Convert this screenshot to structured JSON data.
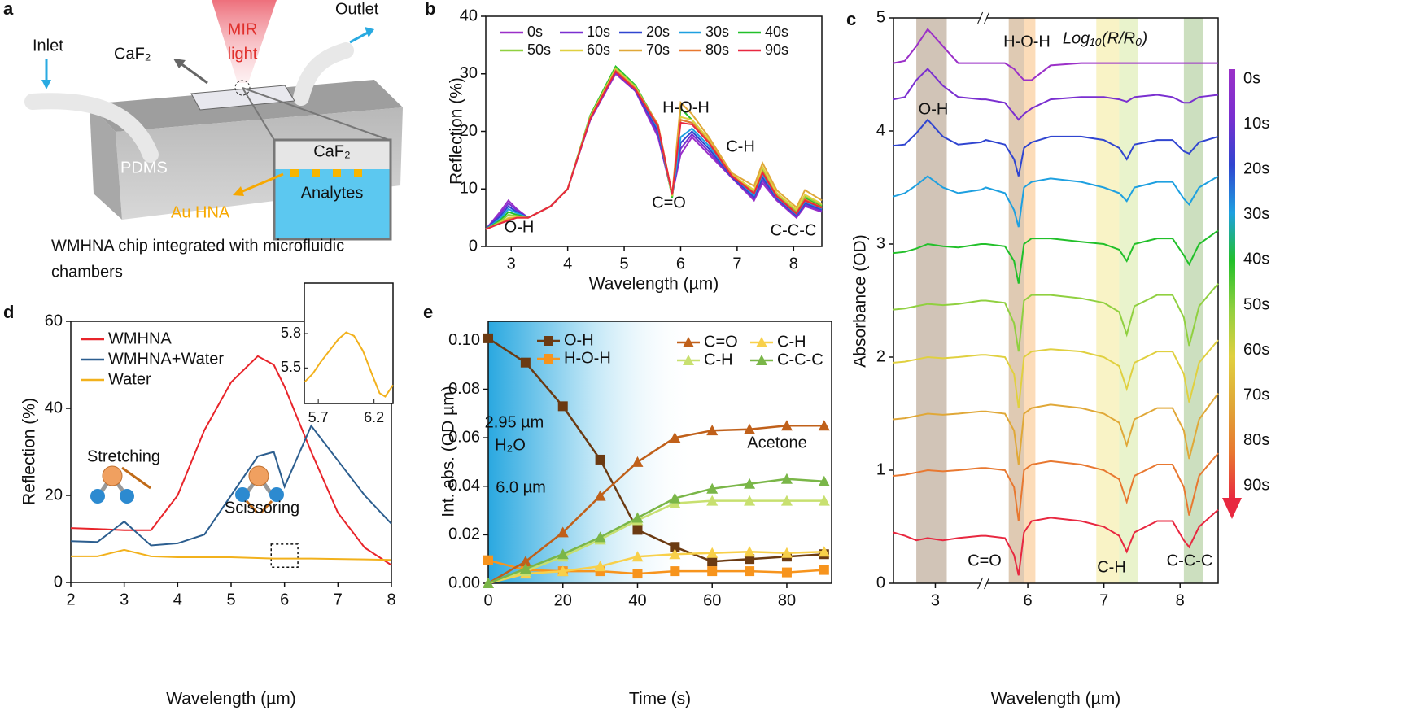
{
  "diagram": {
    "panel": "a",
    "labels": {
      "inlet": "Inlet",
      "caf2_top": "CaF₂",
      "mir": "MIR",
      "light": "light",
      "outlet": "Outlet",
      "pdms": "PDMS",
      "caf2_inset": "CaF₂",
      "analytes": "Analytes",
      "au": "Au HNA"
    },
    "caption": [
      "WMHNA chip integrated with microfluidic",
      "chambers"
    ]
  },
  "chart_data": [
    {
      "panel": "b",
      "type": "line",
      "xlabel": "Wavelength (µm)",
      "ylabel": "Reflection (%)",
      "xlim": [
        2.55,
        8.5
      ],
      "ylim": [
        0,
        40
      ],
      "xticks": [
        3,
        4,
        5,
        6,
        7,
        8
      ],
      "yticks": [
        0,
        10,
        20,
        30,
        40
      ],
      "annotations": [
        "O-H",
        "H-O-H",
        "C=O",
        "C-H",
        "C-C-C"
      ],
      "x": [
        2.55,
        2.8,
        2.95,
        3.1,
        3.3,
        3.7,
        4.0,
        4.4,
        4.85,
        5.2,
        5.6,
        5.85,
        6.0,
        6.2,
        6.5,
        6.9,
        7.3,
        7.45,
        7.7,
        8.05,
        8.2,
        8.5
      ],
      "series": [
        {
          "name": "0s",
          "color": "#9b30c8",
          "values": [
            3,
            6,
            8,
            6.5,
            5,
            7,
            10,
            22,
            30,
            27,
            19,
            9,
            16,
            19,
            16,
            12,
            8,
            11,
            8,
            5,
            7,
            6
          ]
        },
        {
          "name": "10s",
          "color": "#7a2fd0",
          "values": [
            3,
            5.6,
            7.5,
            6.3,
            5,
            7,
            10,
            22,
            30.3,
            27,
            19.5,
            9,
            17,
            19.5,
            16.5,
            12,
            8.3,
            11.5,
            8.2,
            5.2,
            7.2,
            6.2
          ]
        },
        {
          "name": "20s",
          "color": "#3045d0",
          "values": [
            3,
            5.2,
            7,
            6,
            5,
            7,
            10,
            22.3,
            30.6,
            27.3,
            20,
            9,
            18,
            20,
            17,
            12.2,
            8.6,
            12,
            8.4,
            5.4,
            7.5,
            6.4
          ]
        },
        {
          "name": "30s",
          "color": "#1ea0e0",
          "values": [
            3,
            4.8,
            6.5,
            5.8,
            5,
            7,
            10,
            22.5,
            30.8,
            27.5,
            20.5,
            8.8,
            19,
            20.5,
            17.5,
            12.4,
            8.9,
            12.5,
            8.6,
            5.6,
            7.8,
            6.6
          ]
        },
        {
          "name": "40s",
          "color": "#22c02a",
          "values": [
            3,
            4.5,
            6,
            5.5,
            5,
            7,
            10,
            22.8,
            31.3,
            28,
            21,
            8.5,
            24,
            22,
            18.5,
            12.6,
            9.5,
            13.5,
            9,
            6,
            8.5,
            7
          ]
        },
        {
          "name": "50s",
          "color": "#90d040",
          "values": [
            3,
            4.3,
            5.5,
            5.3,
            5,
            7,
            10,
            22.6,
            31,
            27.8,
            21,
            8.7,
            22,
            21.5,
            18.3,
            12.5,
            9.6,
            13.6,
            9.1,
            6.2,
            8.7,
            7.2
          ]
        },
        {
          "name": "60s",
          "color": "#e0d040",
          "values": [
            3,
            4.1,
            5,
            5.1,
            5,
            7,
            10,
            22.5,
            30.8,
            27.6,
            21,
            8.8,
            22.5,
            22,
            18.6,
            12.6,
            9.8,
            13.8,
            9.3,
            6.4,
            9,
            7.4
          ]
        },
        {
          "name": "70s",
          "color": "#e0a838",
          "values": [
            3,
            4,
            4.8,
            5,
            5,
            7,
            10,
            22.4,
            30.6,
            27.5,
            21.2,
            9,
            25,
            23,
            19,
            12.8,
            10.5,
            14.5,
            9.8,
            6.8,
            9.8,
            8
          ]
        },
        {
          "name": "80s",
          "color": "#e87830",
          "values": [
            3,
            4,
            4.6,
            5,
            5,
            7,
            10,
            22.3,
            30.5,
            27.4,
            21,
            9,
            22,
            21.5,
            18.2,
            12.4,
            9.3,
            13,
            8.8,
            5.8,
            8.2,
            6.8
          ]
        },
        {
          "name": "90s",
          "color": "#e82840",
          "values": [
            3,
            4,
            4.5,
            5,
            5,
            7,
            10,
            22.2,
            30.4,
            27.3,
            20.8,
            9,
            21.5,
            21.2,
            18,
            12.3,
            9.2,
            12.8,
            8.7,
            5.7,
            8,
            6.7
          ]
        }
      ]
    },
    {
      "panel": "c",
      "type": "line",
      "xlabel": "Wavelength (µm)",
      "ylabel": "Absorbance (OD)",
      "xlim": [
        2.45,
        8.5
      ],
      "x_break": [
        3.6,
        5.45
      ],
      "ylim": [
        0,
        5
      ],
      "xticks": [
        3,
        6,
        7,
        8
      ],
      "yticks": [
        0,
        1,
        2,
        3,
        4,
        5
      ],
      "annotations": [
        "H-O-H",
        "Log₁₀(R/R₀)",
        "O-H",
        "C=O",
        "C-H",
        "C-C-C"
      ],
      "bands": [
        {
          "range": [
            2.75,
            3.15
          ],
          "color": "#8b6b4a"
        },
        {
          "range": [
            5.75,
            5.95
          ],
          "color": "#b07a40"
        },
        {
          "range": [
            5.95,
            6.1
          ],
          "color": "#f7a850"
        },
        {
          "range": [
            6.9,
            7.2
          ],
          "color": "#f0e070"
        },
        {
          "range": [
            7.2,
            7.45
          ],
          "color": "#c8e080"
        },
        {
          "range": [
            8.05,
            8.3
          ],
          "color": "#80b060"
        }
      ],
      "x": [
        2.45,
        2.6,
        2.75,
        2.9,
        3.1,
        3.3,
        3.6,
        5.45,
        5.7,
        5.82,
        5.88,
        5.95,
        6.05,
        6.3,
        6.7,
        7.0,
        7.2,
        7.3,
        7.4,
        7.7,
        7.9,
        8.05,
        8.12,
        8.25,
        8.5
      ],
      "series": [
        {
          "name": "0s",
          "color": "#9b30c8",
          "values": [
            4.6,
            4.62,
            4.75,
            4.9,
            4.75,
            4.6,
            4.6,
            4.6,
            4.6,
            4.55,
            4.5,
            4.45,
            4.45,
            4.58,
            4.6,
            4.6,
            4.6,
            4.6,
            4.6,
            4.6,
            4.6,
            4.6,
            4.6,
            4.6,
            4.6
          ]
        },
        {
          "name": "10s",
          "color": "#7a2fd0",
          "values": [
            4.28,
            4.3,
            4.45,
            4.55,
            4.4,
            4.3,
            4.28,
            4.28,
            4.25,
            4.15,
            4.1,
            4.15,
            4.2,
            4.28,
            4.3,
            4.3,
            4.28,
            4.26,
            4.3,
            4.32,
            4.3,
            4.25,
            4.25,
            4.3,
            4.32
          ]
        },
        {
          "name": "20s",
          "color": "#3045d0",
          "values": [
            3.87,
            3.88,
            3.98,
            4.1,
            3.95,
            3.88,
            3.9,
            3.92,
            3.88,
            3.75,
            3.6,
            3.85,
            3.9,
            3.95,
            3.95,
            3.92,
            3.85,
            3.75,
            3.88,
            3.92,
            3.92,
            3.82,
            3.8,
            3.9,
            3.95
          ]
        },
        {
          "name": "30s",
          "color": "#1ea0e0",
          "values": [
            3.42,
            3.45,
            3.52,
            3.6,
            3.5,
            3.45,
            3.48,
            3.5,
            3.45,
            3.3,
            3.15,
            3.5,
            3.55,
            3.58,
            3.55,
            3.5,
            3.45,
            3.38,
            3.5,
            3.55,
            3.55,
            3.4,
            3.35,
            3.5,
            3.6
          ]
        },
        {
          "name": "40s",
          "color": "#22c02a",
          "values": [
            2.92,
            2.93,
            2.96,
            3.0,
            2.98,
            2.97,
            3.0,
            3.0,
            2.98,
            2.85,
            2.65,
            3.0,
            3.05,
            3.05,
            3.02,
            3.0,
            2.95,
            2.85,
            3.0,
            3.05,
            3.05,
            2.9,
            2.82,
            3.0,
            3.12
          ]
        },
        {
          "name": "50s",
          "color": "#90d040",
          "values": [
            2.42,
            2.43,
            2.45,
            2.47,
            2.46,
            2.47,
            2.5,
            2.5,
            2.48,
            2.3,
            2.05,
            2.5,
            2.55,
            2.55,
            2.52,
            2.48,
            2.4,
            2.2,
            2.45,
            2.55,
            2.55,
            2.35,
            2.1,
            2.45,
            2.65
          ]
        },
        {
          "name": "60s",
          "color": "#e0d040",
          "values": [
            1.95,
            1.96,
            1.98,
            2.0,
            1.99,
            2.0,
            2.02,
            2.02,
            2.0,
            1.85,
            1.55,
            2.0,
            2.05,
            2.07,
            2.05,
            2.0,
            1.92,
            1.72,
            1.95,
            2.05,
            2.05,
            1.85,
            1.6,
            1.95,
            2.15
          ]
        },
        {
          "name": "70s",
          "color": "#e0a838",
          "values": [
            1.45,
            1.46,
            1.48,
            1.5,
            1.49,
            1.5,
            1.52,
            1.52,
            1.5,
            1.35,
            1.05,
            1.5,
            1.55,
            1.58,
            1.55,
            1.5,
            1.42,
            1.22,
            1.45,
            1.55,
            1.55,
            1.35,
            1.1,
            1.45,
            1.68
          ]
        },
        {
          "name": "80s",
          "color": "#e87830",
          "values": [
            0.95,
            0.96,
            0.98,
            1.0,
            0.99,
            1.0,
            1.02,
            1.02,
            1.0,
            0.85,
            0.55,
            1.0,
            1.05,
            1.08,
            1.05,
            1.0,
            0.92,
            0.72,
            0.95,
            1.05,
            1.05,
            0.85,
            0.6,
            0.95,
            1.15
          ]
        },
        {
          "name": "90s",
          "color": "#e82840",
          "values": [
            0.45,
            0.42,
            0.38,
            0.4,
            0.38,
            0.4,
            0.42,
            0.42,
            0.4,
            0.25,
            0.07,
            0.45,
            0.55,
            0.58,
            0.55,
            0.5,
            0.42,
            0.28,
            0.45,
            0.55,
            0.55,
            0.38,
            0.32,
            0.5,
            0.65
          ]
        }
      ]
    },
    {
      "panel": "d",
      "type": "line",
      "xlabel": "Wavelength (µm)",
      "ylabel": "Reflection (%)",
      "xlim": [
        2,
        8
      ],
      "ylim": [
        0,
        60
      ],
      "xticks": [
        2,
        3,
        4,
        5,
        6,
        7,
        8
      ],
      "yticks": [
        0,
        20,
        40,
        60
      ],
      "annotations": [
        "Stretching",
        "Scissoring"
      ],
      "zoom_box": {
        "x": [
          5.75,
          6.25
        ],
        "y": [
          3.5,
          8.8
        ]
      },
      "x": [
        2,
        2.5,
        3,
        3.5,
        4,
        4.5,
        5,
        5.5,
        5.8,
        6,
        6.5,
        7,
        7.5,
        8
      ],
      "series": [
        {
          "name": "WMHNA",
          "color": "#e8242a",
          "values": [
            12.5,
            12.3,
            12,
            12,
            20,
            35,
            46,
            52,
            50,
            45,
            30,
            16,
            8,
            4
          ]
        },
        {
          "name": "WMHNA+Water",
          "color": "#2c5e8f",
          "values": [
            9.5,
            9.3,
            14,
            8.5,
            9,
            11,
            20,
            29,
            30,
            22,
            36,
            28,
            20,
            13.5
          ]
        },
        {
          "name": "Water",
          "color": "#f2b11c",
          "values": [
            6,
            6,
            7.5,
            6,
            5.8,
            5.8,
            5.8,
            5.6,
            5.5,
            5.5,
            5.5,
            5.4,
            5.3,
            5.2
          ]
        }
      ],
      "inset": {
        "xlim": [
          5.575,
          6.37
        ],
        "ylim": [
          5.19,
          6.24
        ],
        "xticks": [
          5.7,
          6.2
        ],
        "yticks": [
          5.8,
          5.5
        ],
        "color": "#f2b11c",
        "x": [
          5.58,
          5.65,
          5.72,
          5.8,
          5.88,
          5.95,
          6.02,
          6.1,
          6.18,
          6.25,
          6.3,
          6.37
        ],
        "values": [
          5.38,
          5.45,
          5.55,
          5.65,
          5.75,
          5.81,
          5.78,
          5.65,
          5.45,
          5.28,
          5.25,
          5.35
        ]
      }
    },
    {
      "panel": "e",
      "type": "line",
      "xlabel": "Time (s)",
      "ylabel": "Int. abs. (OD µm)",
      "xlim": [
        0,
        92
      ],
      "ylim": [
        0,
        0.108
      ],
      "xticks": [
        0,
        20,
        40,
        60,
        80
      ],
      "yticks": [
        {
          "value": 0,
          "label": "0.00"
        },
        {
          "value": 0.02,
          "label": "0.02"
        },
        {
          "value": 0.04,
          "label": "0.04"
        },
        {
          "value": 0.06,
          "label": "0.06"
        },
        {
          "value": 0.08,
          "label": "0.08"
        },
        {
          "value": 0.1,
          "label": "0.10"
        }
      ],
      "annotations": [
        "2.95 µm",
        "H₂O",
        "6.0 µm",
        "Acetone"
      ],
      "x": [
        0,
        10,
        20,
        30,
        40,
        50,
        60,
        70,
        80,
        90
      ],
      "series": [
        {
          "name": "O-H",
          "color": "#6b3a12",
          "marker": "square",
          "values": [
            0.101,
            0.091,
            0.073,
            0.051,
            0.022,
            0.015,
            0.009,
            0.01,
            0.011,
            0.012
          ]
        },
        {
          "name": "H-O-H",
          "color": "#f7941d",
          "marker": "square",
          "values": [
            0.0095,
            0.0055,
            0.005,
            0.005,
            0.004,
            0.005,
            0.005,
            0.005,
            0.0045,
            0.0055
          ]
        },
        {
          "name": "C=O",
          "color": "#c0601a",
          "marker": "triangle",
          "values": [
            0,
            0.009,
            0.021,
            0.036,
            0.05,
            0.06,
            0.063,
            0.0635,
            0.065,
            0.065
          ]
        },
        {
          "name": "C-H",
          "color": "#f8d04a",
          "marker": "triangle",
          "values": [
            0,
            0.004,
            0.005,
            0.007,
            0.011,
            0.012,
            0.0125,
            0.013,
            0.0125,
            0.013
          ]
        },
        {
          "name": "C-H",
          "color": "#c8e070",
          "marker": "triangle",
          "values": [
            0,
            0.005,
            0.011,
            0.018,
            0.026,
            0.033,
            0.034,
            0.034,
            0.034,
            0.034
          ]
        },
        {
          "name": "C-C-C",
          "color": "#7ab648",
          "marker": "triangle",
          "values": [
            0,
            0.006,
            0.012,
            0.019,
            0.027,
            0.035,
            0.039,
            0.041,
            0.043,
            0.042
          ]
        }
      ]
    }
  ]
}
